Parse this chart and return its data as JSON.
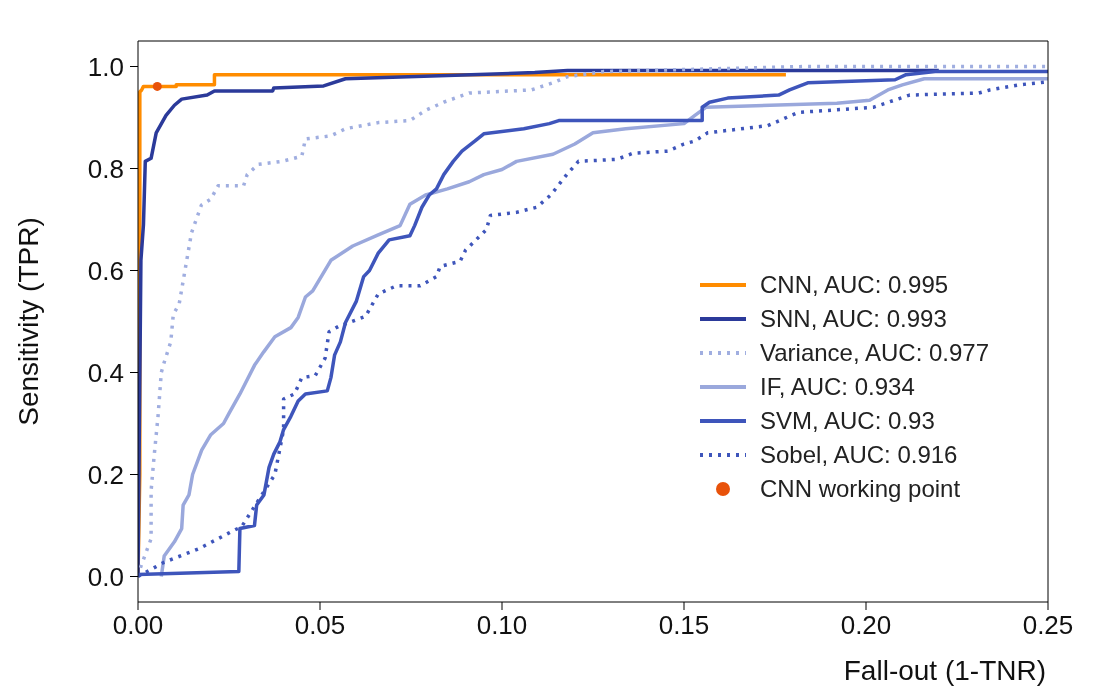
{
  "chart_data": {
    "type": "line",
    "xlabel": "Fall-out (1-TNR)",
    "ylabel": "Sensitivity (TPR)",
    "xlim": [
      0,
      0.25
    ],
    "ylim": [
      -0.05,
      1.05
    ],
    "xticks": [
      {
        "value": 0,
        "label": "0.00"
      },
      {
        "value": 0.05,
        "label": "0.05"
      },
      {
        "value": 0.1,
        "label": "0.10"
      },
      {
        "value": 0.15,
        "label": "0.15"
      },
      {
        "value": 0.2,
        "label": "0.20"
      },
      {
        "value": 0.25,
        "label": "0.25"
      }
    ],
    "yticks": [
      {
        "value": 0,
        "label": "0.0"
      },
      {
        "value": 0.2,
        "label": "0.2"
      },
      {
        "value": 0.4,
        "label": "0.4"
      },
      {
        "value": 0.6,
        "label": "0.6"
      },
      {
        "value": 0.8,
        "label": "0.8"
      },
      {
        "value": 1,
        "label": "1.0"
      }
    ],
    "legend": "bottom right",
    "marker": "none",
    "series": [
      {
        "name": "CNN, AUC: 0.995",
        "color": "#ff8c00",
        "line_style": "solid",
        "x": [
          0,
          0.0005,
          0.0005,
          0.001,
          0.0015,
          0.0105,
          0.0105,
          0.021,
          0.021,
          0.178
        ],
        "values": [
          0,
          0.2,
          0.95,
          0.954,
          0.961,
          0.961,
          0.964,
          0.964,
          0.984,
          0.984
        ]
      },
      {
        "name": "SNN, AUC: 0.993",
        "color": "#2b3a9a",
        "line_style": "solid",
        "x": [
          0,
          0.0008,
          0.0015,
          0.002,
          0.0036,
          0.005,
          0.0077,
          0.01,
          0.012,
          0.019,
          0.021,
          0.037,
          0.0373,
          0.051,
          0.057,
          0.109,
          0.118,
          0.22
        ],
        "values": [
          0,
          0.62,
          0.69,
          0.814,
          0.82,
          0.87,
          0.904,
          0.924,
          0.936,
          0.944,
          0.952,
          0.952,
          0.958,
          0.962,
          0.976,
          0.988,
          0.992,
          0.992
        ]
      },
      {
        "name": "Variance, AUC: 0.977",
        "color": "#a0aee0",
        "line_style": "dotted",
        "x": [
          0,
          0.0008,
          0.0036,
          0.0036,
          0.0044,
          0.0055,
          0.0064,
          0.0072,
          0.009,
          0.0097,
          0.0113,
          0.0147,
          0.0174,
          0.02,
          0.022,
          0.029,
          0.03,
          0.033,
          0.0395,
          0.045,
          0.046,
          0.053,
          0.057,
          0.066,
          0.0747,
          0.079,
          0.084,
          0.091,
          0.108,
          0.114,
          0.118,
          0.128,
          0.183,
          0.25
        ],
        "values": [
          0,
          0.02,
          0.074,
          0.168,
          0.234,
          0.314,
          0.4,
          0.42,
          0.46,
          0.514,
          0.534,
          0.674,
          0.728,
          0.74,
          0.766,
          0.766,
          0.788,
          0.808,
          0.814,
          0.824,
          0.858,
          0.864,
          0.878,
          0.89,
          0.894,
          0.914,
          0.93,
          0.948,
          0.954,
          0.968,
          0.98,
          0.99,
          1,
          1
        ]
      },
      {
        "name": "IF, AUC: 0.934",
        "color": "#9aa8dc",
        "line_style": "solid",
        "x": [
          0.0064,
          0.0072,
          0.01,
          0.012,
          0.0124,
          0.014,
          0.015,
          0.0175,
          0.02,
          0.0235,
          0.025,
          0.028,
          0.032,
          0.0345,
          0.0376,
          0.042,
          0.044,
          0.046,
          0.048,
          0.053,
          0.059,
          0.066,
          0.072,
          0.0747,
          0.079,
          0.085,
          0.091,
          0.095,
          0.1,
          0.104,
          0.114,
          0.12,
          0.125,
          0.134,
          0.15,
          0.153,
          0.156,
          0.192,
          0.201,
          0.206,
          0.21,
          0.216,
          0.25
        ],
        "values": [
          0,
          0.04,
          0.068,
          0.094,
          0.14,
          0.16,
          0.2,
          0.248,
          0.278,
          0.3,
          0.32,
          0.358,
          0.414,
          0.44,
          0.47,
          0.488,
          0.508,
          0.548,
          0.56,
          0.62,
          0.648,
          0.67,
          0.688,
          0.73,
          0.748,
          0.76,
          0.774,
          0.788,
          0.798,
          0.814,
          0.828,
          0.848,
          0.87,
          0.878,
          0.888,
          0.904,
          0.92,
          0.928,
          0.934,
          0.954,
          0.964,
          0.976,
          0.976
        ]
      },
      {
        "name": "SVM, AUC: 0.93",
        "color": "#3e55bb",
        "line_style": "solid",
        "x": [
          0,
          0.0277,
          0.028,
          0.032,
          0.0326,
          0.0346,
          0.036,
          0.0373,
          0.039,
          0.04,
          0.042,
          0.044,
          0.046,
          0.052,
          0.053,
          0.054,
          0.0556,
          0.057,
          0.06,
          0.062,
          0.0636,
          0.066,
          0.069,
          0.0747,
          0.076,
          0.078,
          0.08,
          0.082,
          0.084,
          0.0866,
          0.089,
          0.0926,
          0.095,
          0.106,
          0.113,
          0.1156,
          0.155,
          0.155,
          0.157,
          0.162,
          0.176,
          0.179,
          0.184,
          0.208,
          0.211,
          0.219,
          0.25
        ],
        "values": [
          0.004,
          0.01,
          0.094,
          0.1,
          0.14,
          0.16,
          0.214,
          0.24,
          0.264,
          0.288,
          0.314,
          0.344,
          0.358,
          0.364,
          0.39,
          0.434,
          0.46,
          0.498,
          0.54,
          0.588,
          0.6,
          0.634,
          0.66,
          0.668,
          0.688,
          0.724,
          0.748,
          0.76,
          0.788,
          0.814,
          0.834,
          0.854,
          0.868,
          0.878,
          0.888,
          0.894,
          0.894,
          0.92,
          0.93,
          0.938,
          0.944,
          0.954,
          0.968,
          0.974,
          0.984,
          0.99,
          0.99
        ]
      },
      {
        "name": "Sobel, AUC: 0.916",
        "color": "#3e55bb",
        "line_style": "dotted",
        "x": [
          0,
          0.0036,
          0.0072,
          0.0166,
          0.0257,
          0.0285,
          0.0376,
          0.04,
          0.04,
          0.043,
          0.045,
          0.0487,
          0.0514,
          0.0525,
          0.055,
          0.0625,
          0.066,
          0.071,
          0.0775,
          0.082,
          0.083,
          0.0885,
          0.09,
          0.0957,
          0.0968,
          0.104,
          0.1095,
          0.1134,
          0.118,
          0.121,
          0.1316,
          0.136,
          0.1455,
          0.15,
          0.153,
          0.1565,
          0.173,
          0.1814,
          0.202,
          0.212,
          0.231,
          0.234,
          0.242,
          0.25
        ],
        "values": [
          0,
          0.014,
          0.028,
          0.054,
          0.088,
          0.098,
          0.2,
          0.288,
          0.348,
          0.358,
          0.39,
          0.394,
          0.428,
          0.48,
          0.49,
          0.51,
          0.554,
          0.57,
          0.57,
          0.588,
          0.608,
          0.618,
          0.64,
          0.68,
          0.708,
          0.714,
          0.724,
          0.748,
          0.79,
          0.814,
          0.818,
          0.83,
          0.834,
          0.848,
          0.854,
          0.87,
          0.884,
          0.91,
          0.92,
          0.944,
          0.948,
          0.954,
          0.964,
          0.97
        ]
      },
      {
        "name": "CNN working point",
        "color": "#e8520a",
        "type": "scatter",
        "marker": "circle",
        "x": [
          0.0053
        ],
        "values": [
          0.961
        ]
      }
    ]
  }
}
